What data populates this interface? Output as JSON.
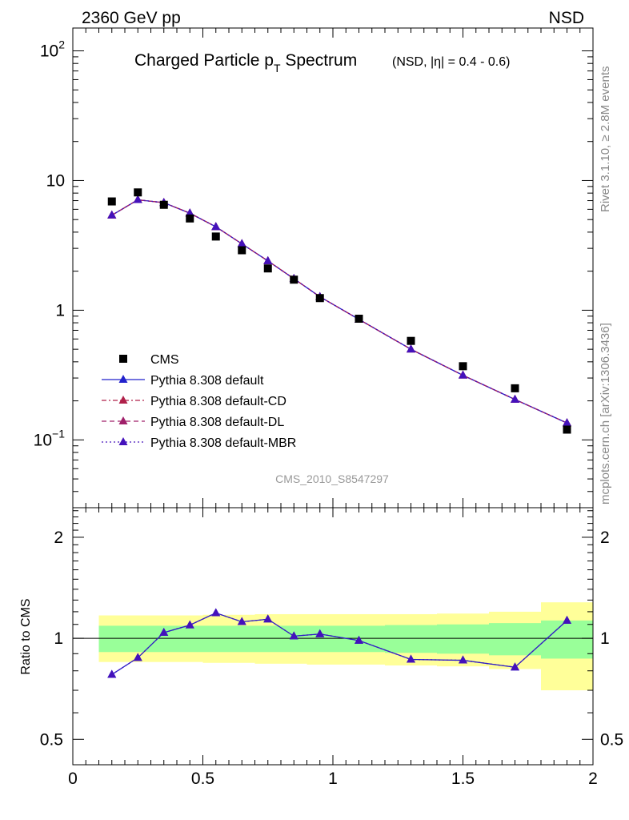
{
  "header": {
    "left": "2360 GeV pp",
    "right": "NSD"
  },
  "side_text": {
    "rivet": "Rivet 3.1.10, ≥ 2.8M events",
    "mcplots": "mcplots.cern.ch [arXiv:1306.3436]"
  },
  "chart_data": [
    {
      "panel": "main",
      "type": "scatter",
      "title_main": "Charged Particle p",
      "title_sub": "T",
      "title_tail": " Spectrum",
      "title_extra": "(NSD, |η| = 0.4 - 0.6)",
      "analysis_tag": "CMS_2010_S8547297",
      "y_scale": "log",
      "xlim": [
        0,
        2
      ],
      "ylim": [
        0.03,
        150
      ],
      "x_ticks": [
        "0",
        "0.5",
        "1",
        "1.5",
        "2"
      ],
      "y_tick_labels": [
        {
          "value": 0.1,
          "base": "10",
          "exp": "−1"
        },
        {
          "value": 1,
          "base": "1",
          "exp": ""
        },
        {
          "value": 10,
          "base": "10",
          "exp": ""
        },
        {
          "value": 100,
          "base": "10",
          "exp": "2"
        }
      ],
      "legend_position": "lower-left",
      "series": [
        {
          "name": "CMS",
          "marker": "square",
          "color": "#000000",
          "x": [
            0.15,
            0.25,
            0.35,
            0.45,
            0.55,
            0.65,
            0.75,
            0.85,
            0.95,
            1.1,
            1.3,
            1.5,
            1.7,
            1.9
          ],
          "y": [
            6.9,
            8.1,
            6.5,
            5.1,
            3.7,
            2.9,
            2.1,
            1.72,
            1.24,
            0.86,
            0.58,
            0.37,
            0.25,
            0.12
          ]
        },
        {
          "name": "Pythia 8.308 default",
          "marker": "triangle",
          "line": "solid",
          "color": "#2222cc",
          "x": [
            0.15,
            0.25,
            0.35,
            0.45,
            0.55,
            0.65,
            0.75,
            0.85,
            0.95,
            1.1,
            1.3,
            1.5,
            1.7,
            1.9
          ],
          "y": [
            5.4,
            7.1,
            6.75,
            5.6,
            4.4,
            3.25,
            2.4,
            1.75,
            1.27,
            0.85,
            0.5,
            0.315,
            0.205,
            0.135
          ]
        },
        {
          "name": "Pythia 8.308 default-CD",
          "marker": "triangle",
          "line": "dashdot",
          "color": "#b0204a",
          "x": [
            0.15,
            0.25,
            0.35,
            0.45,
            0.55,
            0.65,
            0.75,
            0.85,
            0.95,
            1.1,
            1.3,
            1.5,
            1.7,
            1.9
          ],
          "y": [
            5.4,
            7.1,
            6.75,
            5.6,
            4.4,
            3.25,
            2.4,
            1.75,
            1.27,
            0.85,
            0.5,
            0.315,
            0.205,
            0.135
          ]
        },
        {
          "name": "Pythia 8.308 default-DL",
          "marker": "triangle",
          "line": "dashed",
          "color": "#a0206a",
          "x": [
            0.15,
            0.25,
            0.35,
            0.45,
            0.55,
            0.65,
            0.75,
            0.85,
            0.95,
            1.1,
            1.3,
            1.5,
            1.7,
            1.9
          ],
          "y": [
            5.4,
            7.1,
            6.75,
            5.6,
            4.4,
            3.25,
            2.4,
            1.75,
            1.27,
            0.85,
            0.5,
            0.315,
            0.205,
            0.135
          ]
        },
        {
          "name": "Pythia 8.308 default-MBR",
          "marker": "triangle",
          "line": "dotted",
          "color": "#4411bb",
          "x": [
            0.15,
            0.25,
            0.35,
            0.45,
            0.55,
            0.65,
            0.75,
            0.85,
            0.95,
            1.1,
            1.3,
            1.5,
            1.7,
            1.9
          ],
          "y": [
            5.4,
            7.1,
            6.75,
            5.6,
            4.4,
            3.25,
            2.4,
            1.75,
            1.27,
            0.85,
            0.5,
            0.315,
            0.205,
            0.135
          ]
        }
      ]
    },
    {
      "panel": "ratio",
      "type": "line",
      "ylabel": "Ratio to CMS",
      "y_scale": "log",
      "xlim": [
        0,
        2
      ],
      "ylim": [
        0.42,
        2.45
      ],
      "y_ticks": [
        "0.5",
        "1",
        "2"
      ],
      "reference": 1,
      "band_colors": {
        "inner": "#99ff99",
        "outer": "#ffff99"
      },
      "bands": [
        {
          "x0": 0.1,
          "x1": 0.2,
          "inner": [
            0.91,
            1.09
          ],
          "outer": [
            0.85,
            1.17
          ]
        },
        {
          "x0": 0.2,
          "x1": 0.3,
          "inner": [
            0.91,
            1.09
          ],
          "outer": [
            0.85,
            1.17
          ]
        },
        {
          "x0": 0.3,
          "x1": 0.4,
          "inner": [
            0.91,
            1.09
          ],
          "outer": [
            0.85,
            1.17
          ]
        },
        {
          "x0": 0.4,
          "x1": 0.5,
          "inner": [
            0.91,
            1.09
          ],
          "outer": [
            0.85,
            1.17
          ]
        },
        {
          "x0": 0.5,
          "x1": 0.6,
          "inner": [
            0.91,
            1.09
          ],
          "outer": [
            0.845,
            1.175
          ]
        },
        {
          "x0": 0.6,
          "x1": 0.7,
          "inner": [
            0.91,
            1.09
          ],
          "outer": [
            0.845,
            1.175
          ]
        },
        {
          "x0": 0.7,
          "x1": 0.8,
          "inner": [
            0.91,
            1.09
          ],
          "outer": [
            0.84,
            1.18
          ]
        },
        {
          "x0": 0.8,
          "x1": 0.9,
          "inner": [
            0.91,
            1.09
          ],
          "outer": [
            0.84,
            1.18
          ]
        },
        {
          "x0": 0.9,
          "x1": 1.0,
          "inner": [
            0.91,
            1.09
          ],
          "outer": [
            0.835,
            1.18
          ]
        },
        {
          "x0": 1.0,
          "x1": 1.2,
          "inner": [
            0.91,
            1.09
          ],
          "outer": [
            0.835,
            1.18
          ]
        },
        {
          "x0": 1.2,
          "x1": 1.4,
          "inner": [
            0.905,
            1.095
          ],
          "outer": [
            0.83,
            1.18
          ]
        },
        {
          "x0": 1.4,
          "x1": 1.6,
          "inner": [
            0.9,
            1.1
          ],
          "outer": [
            0.825,
            1.185
          ]
        },
        {
          "x0": 1.6,
          "x1": 1.8,
          "inner": [
            0.89,
            1.11
          ],
          "outer": [
            0.81,
            1.2
          ]
        },
        {
          "x0": 1.8,
          "x1": 2.0,
          "inner": [
            0.87,
            1.13
          ],
          "outer": [
            0.7,
            1.28
          ]
        }
      ],
      "series": [
        {
          "name": "Pythia 8.308 default",
          "color": "#2222cc",
          "x": [
            0.15,
            0.25,
            0.35,
            0.45,
            0.55,
            0.65,
            0.75,
            0.85,
            0.95,
            1.1,
            1.3,
            1.5,
            1.7,
            1.9
          ],
          "y": [
            0.78,
            0.875,
            1.04,
            1.095,
            1.19,
            1.12,
            1.14,
            1.015,
            1.03,
            0.985,
            0.865,
            0.86,
            0.82,
            1.13
          ]
        },
        {
          "name": "Pythia 8.308 default-MBR",
          "color": "#4411bb",
          "x": [
            0.15,
            0.25,
            0.35,
            0.45,
            0.55,
            0.65,
            0.75,
            0.85,
            0.95,
            1.1,
            1.3,
            1.5,
            1.7,
            1.9
          ],
          "y": [
            0.78,
            0.875,
            1.04,
            1.095,
            1.19,
            1.12,
            1.14,
            1.015,
            1.03,
            0.985,
            0.865,
            0.86,
            0.82,
            1.13
          ]
        }
      ]
    }
  ]
}
